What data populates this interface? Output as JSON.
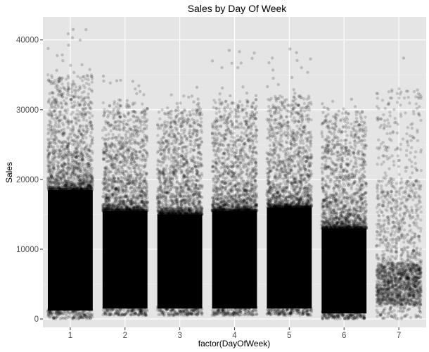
{
  "chart_data": {
    "type": "scatter",
    "title": "Sales by Day Of Week",
    "xlabel": "factor(DayOfWeek)",
    "ylabel": "Sales",
    "categories": [
      "1",
      "2",
      "3",
      "4",
      "5",
      "6",
      "7"
    ],
    "y_ticks": [
      0,
      10000,
      20000,
      30000,
      40000
    ],
    "y_tick_labels": [
      "0",
      "10000",
      "20000",
      "30000",
      "40000"
    ],
    "ylim": [
      -1200,
      43300
    ],
    "grid": true,
    "legend": "none",
    "point_color": "#000000",
    "panel_color": "#e5e5e5",
    "series": [
      {
        "category": "1",
        "sales_min": 0,
        "dense_low": 1200,
        "dense_high": 18500,
        "sparse_high": 35000,
        "max": 41500,
        "relative_density": 1.0
      },
      {
        "category": "2",
        "sales_min": 500,
        "dense_low": 1500,
        "dense_high": 15500,
        "sparse_high": 31000,
        "max": 34800,
        "relative_density": 1.0
      },
      {
        "category": "3",
        "sales_min": 500,
        "dense_low": 1500,
        "dense_high": 15000,
        "sparse_high": 30000,
        "max": 33200,
        "relative_density": 1.0
      },
      {
        "category": "4",
        "sales_min": 500,
        "dense_low": 1500,
        "dense_high": 15500,
        "sparse_high": 31500,
        "max": 38500,
        "relative_density": 1.0
      },
      {
        "category": "5",
        "sales_min": 500,
        "dense_low": 1500,
        "dense_high": 16000,
        "sparse_high": 32000,
        "max": 38700,
        "relative_density": 1.0
      },
      {
        "category": "6",
        "sales_min": 0,
        "dense_low": 800,
        "dense_high": 13000,
        "sparse_high": 29500,
        "max": 31500,
        "relative_density": 1.0
      },
      {
        "category": "7",
        "sales_min": 0,
        "dense_low": 2000,
        "dense_high": 8000,
        "sparse_high": 33000,
        "max": 37400,
        "relative_density": 0.12
      }
    ]
  }
}
